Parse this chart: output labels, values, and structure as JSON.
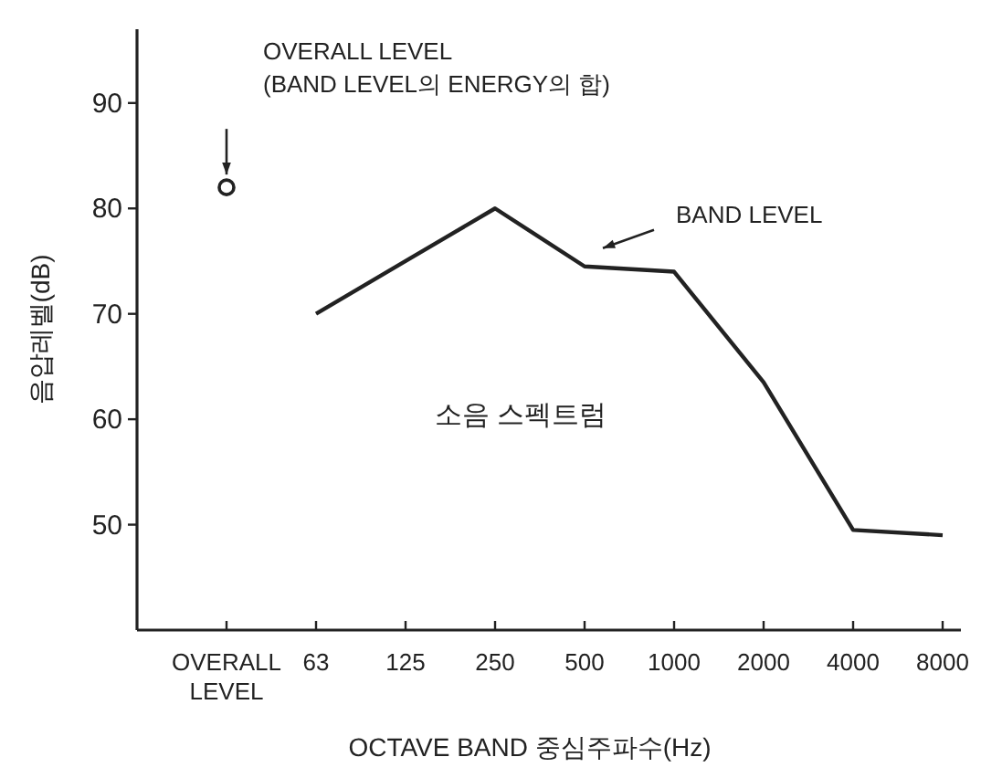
{
  "chart_data": {
    "type": "line",
    "categories": [
      "OVERALL LEVEL",
      "63",
      "125",
      "250",
      "500",
      "1000",
      "2000",
      "4000",
      "8000"
    ],
    "xlabel": "OCTAVE BAND 중심주파수(Hz)",
    "ylabel": "음압레벨(dB)",
    "ylim": [
      40,
      97
    ],
    "yticks": [
      50,
      60,
      70,
      80,
      90
    ],
    "series": [
      {
        "type": "scatter",
        "marker": "circle",
        "color": "#222222",
        "values": [
          82,
          null,
          null,
          null,
          null,
          null,
          null,
          null,
          null
        ]
      },
      {
        "marker": "none",
        "color": "#222222",
        "values": [
          null,
          70,
          75,
          80,
          74.5,
          74,
          63.5,
          49.5,
          49
        ]
      }
    ],
    "annotations": [
      "OVERALL LEVEL\n(BAND LEVEL의 ENERGY의 합)",
      "BAND LEVEL",
      "소음 스펙트럼"
    ]
  }
}
